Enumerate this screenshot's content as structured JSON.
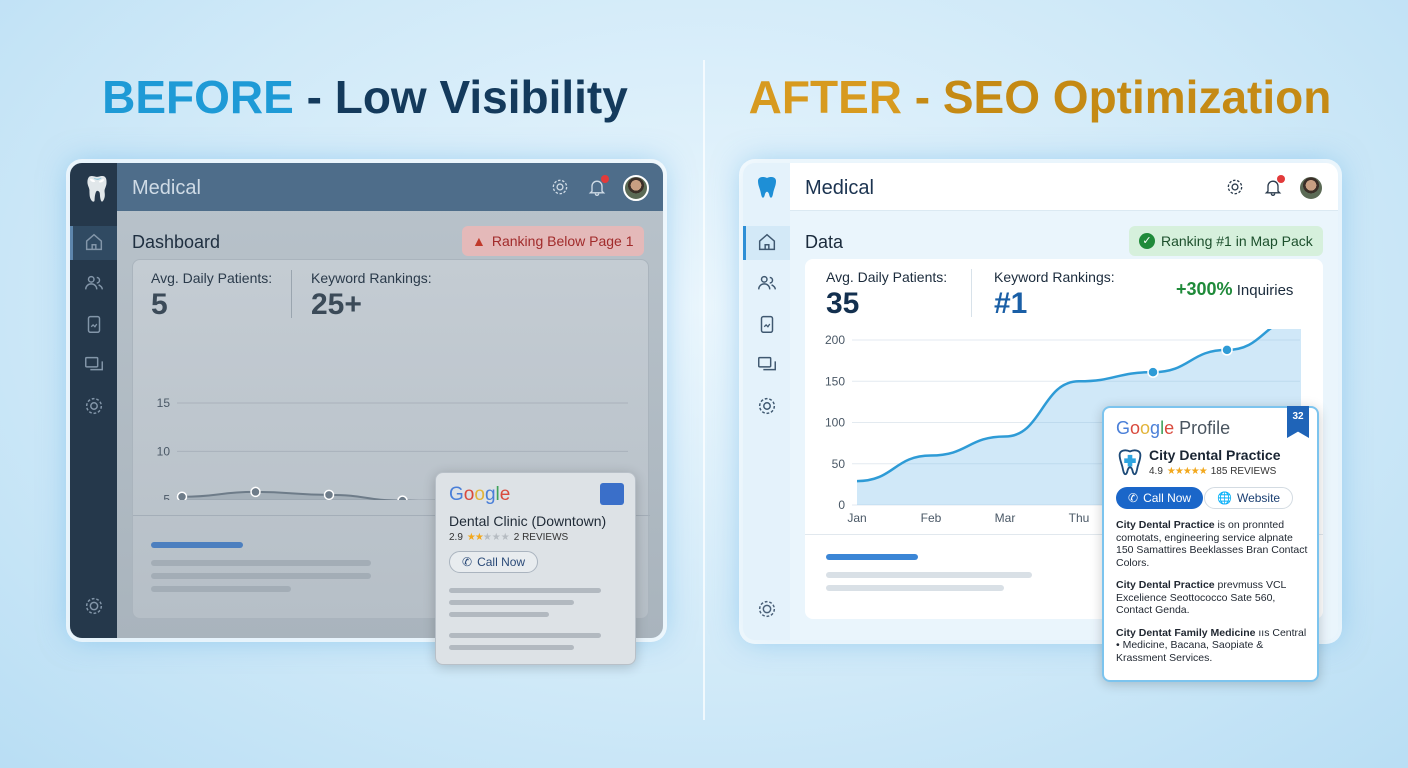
{
  "headlines": {
    "before_strong": "BEFORE",
    "before_rest": " - Low Visibility",
    "after_strong": "AFTER",
    "after_rest": " - SEO Optimization"
  },
  "colors": {
    "before_accent": "#1e9ad6",
    "before_dark": "#143a5c",
    "after_gold": "#d79a1f",
    "alert_red": "#c0392b",
    "success_green": "#1f8a3a",
    "chart_blue": "#2e9bd6"
  },
  "before": {
    "app_title": "Medical",
    "section": "Dashboard",
    "alert": "Ranking Below Page 1",
    "alert_icon": "warning-icon",
    "stats": [
      {
        "label": "Avg. Daily Patients:",
        "value": "5"
      },
      {
        "label": "Keyword Rankings:",
        "value": "25+"
      }
    ],
    "nav_icons": [
      "home-icon",
      "users-icon",
      "clipboard-icon",
      "messages-icon",
      "gear-icon"
    ],
    "notification_count": "1",
    "google_card": {
      "brand": "Google",
      "name": "Dental Clinic (Downtown)",
      "rating": "2.9",
      "stars": 2,
      "reviews": "2 REVIEWS",
      "call": "Call Now"
    }
  },
  "after": {
    "app_title": "Medical",
    "section": "Data",
    "badge": "Ranking #1 in Map Pack",
    "badge_icon": "check-circle-icon",
    "stats": [
      {
        "label": "Avg. Daily Patients:",
        "value": "35"
      },
      {
        "label": "Keyword Rankings:",
        "value": "#1"
      }
    ],
    "inquiries_value": "+300%",
    "inquiries_label": " Inquiries",
    "nav_icons": [
      "home-icon",
      "users-icon",
      "clipboard-icon",
      "messages-icon",
      "gear-icon"
    ],
    "notification_count": "1",
    "profile": {
      "brand": "Google",
      "suffix": " Profile",
      "ribbon": "32",
      "name": "City Dental Practice",
      "rating": "4.9",
      "stars": 5,
      "reviews": "185 REVIEWS",
      "call": "Call Now",
      "website": "Website",
      "entries": [
        {
          "bold": "City Dental Practice",
          "rest": " is on pronnted comotats, engineering service alpnate 150 Samattires Beeklasses Bran Contact Colors."
        },
        {
          "bold": "City Dental Practice",
          "rest": " prevmuss VCL Excelience Seottococco Sate 560, Contact Genda."
        },
        {
          "bold": "City Dentat Family Medicine",
          "rest": " ııs Central • Medicine, Bacana, Saopiate & Krassment Services."
        }
      ]
    }
  },
  "chart_data": [
    {
      "type": "line",
      "categories": [
        "Jan",
        "Feb",
        "Mar",
        "Thu",
        "",
        "",
        ""
      ],
      "values": [
        5.3,
        5.8,
        5.5,
        4.9,
        4.5,
        4.5,
        4.5
      ],
      "ylim": [
        0,
        15
      ],
      "yticks": [
        0,
        5,
        10,
        15
      ],
      "grid": true,
      "area_fill": true
    },
    {
      "type": "area",
      "categories": [
        "Jan",
        "Feb",
        "Mar",
        "Thu",
        "",
        "",
        ""
      ],
      "values": [
        29,
        60,
        83,
        150,
        161,
        188,
        227
      ],
      "ylim": [
        0,
        200
      ],
      "yticks": [
        0,
        50,
        100,
        150,
        200
      ],
      "grid": true
    }
  ]
}
